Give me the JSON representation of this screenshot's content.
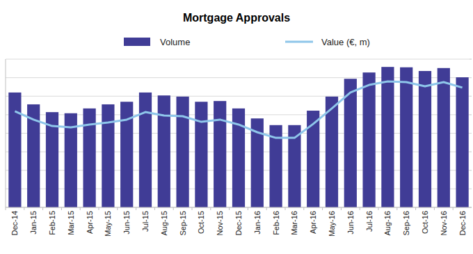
{
  "chart_data": {
    "type": "bar",
    "title": "Mortgage Approvals",
    "categories": [
      "Dec-14",
      "Jan-15",
      "Feb-15",
      "Mar-15",
      "Apr-15",
      "May-15",
      "Jun-15",
      "Jul-15",
      "Aug-15",
      "Sep-15",
      "Oct-15",
      "Nov-15",
      "Dec-15",
      "Jan-16",
      "Feb-16",
      "Mar-16",
      "Apr-16",
      "May-16",
      "Jun-16",
      "Jul-16",
      "Aug-16",
      "Sep-16",
      "Oct-16",
      "Nov-16",
      "Dec-16"
    ],
    "series": [
      {
        "name": "Volume",
        "type": "bar",
        "color": "#403c96",
        "values": [
          3100,
          2780,
          2570,
          2540,
          2670,
          2780,
          2850,
          3100,
          3020,
          2990,
          2850,
          2870,
          2670,
          2400,
          2220,
          2220,
          2610,
          2990,
          3470,
          3640,
          3790,
          3780,
          3680,
          3760,
          3510
        ]
      },
      {
        "name": "Value (€, m)",
        "type": "line",
        "color": "#8ec6ea",
        "axis": "y2",
        "values": [
          648,
          592,
          549,
          540,
          559,
          573,
          592,
          643,
          620,
          615,
          577,
          592,
          559,
          507,
          469,
          469,
          563,
          667,
          775,
          826,
          850,
          845,
          817,
          845,
          808
        ]
      }
    ],
    "ylim": [
      0,
      4000
    ],
    "yticks": [
      0,
      500,
      1000,
      1500,
      2000,
      2500,
      3000,
      3500,
      4000
    ],
    "y2lim": [
      0,
      1000
    ],
    "y2ticks": [
      0,
      125,
      250,
      375,
      500,
      625,
      750,
      875,
      1000
    ],
    "grid": true,
    "legend": "top",
    "tick_labels": "x"
  }
}
